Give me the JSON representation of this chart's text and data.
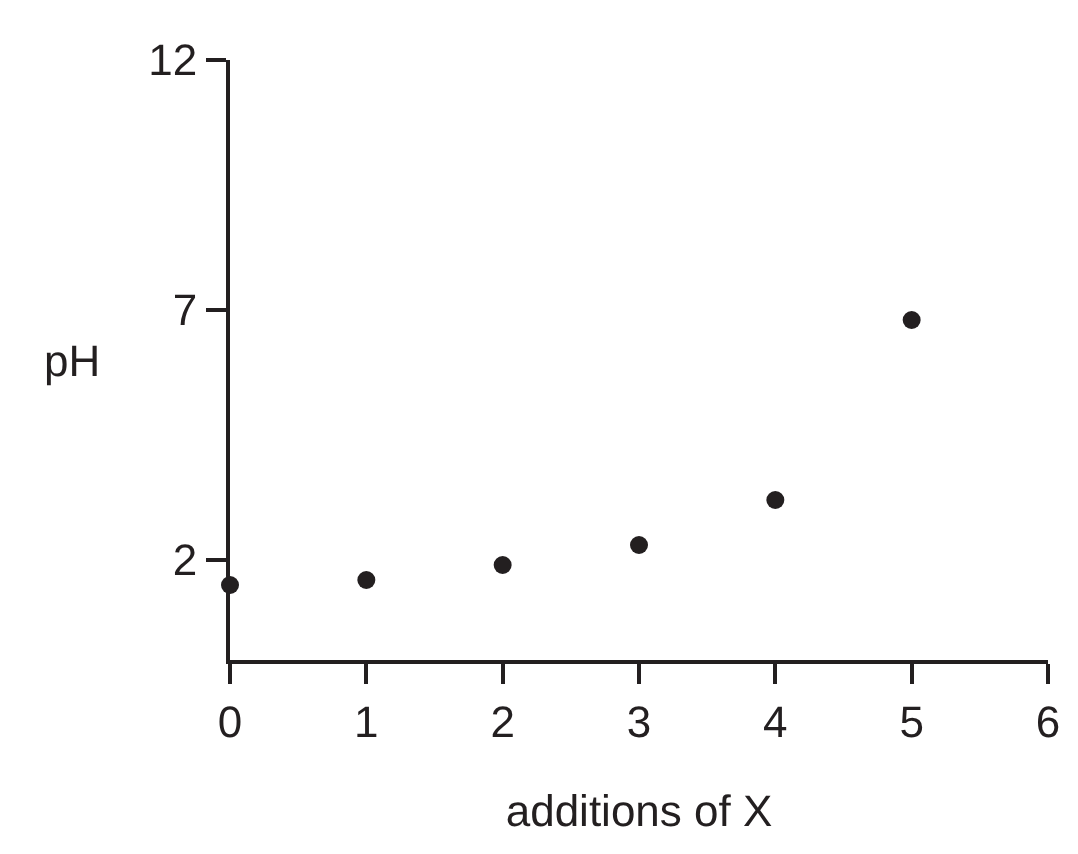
{
  "chart_data": {
    "type": "scatter",
    "xlabel": "additions of X",
    "ylabel": "pH",
    "x": [
      0,
      1,
      2,
      3,
      4,
      5
    ],
    "series": [
      {
        "color": "#231f20",
        "values": [
          1.5,
          1.6,
          1.9,
          2.3,
          3.2,
          6.8
        ]
      }
    ],
    "xlim": [
      0,
      6
    ],
    "xticks": [
      0,
      1,
      2,
      3,
      4,
      5,
      6
    ],
    "ylim": [
      0,
      12
    ],
    "yticks": [
      2,
      7,
      12
    ],
    "marker": "circle"
  }
}
